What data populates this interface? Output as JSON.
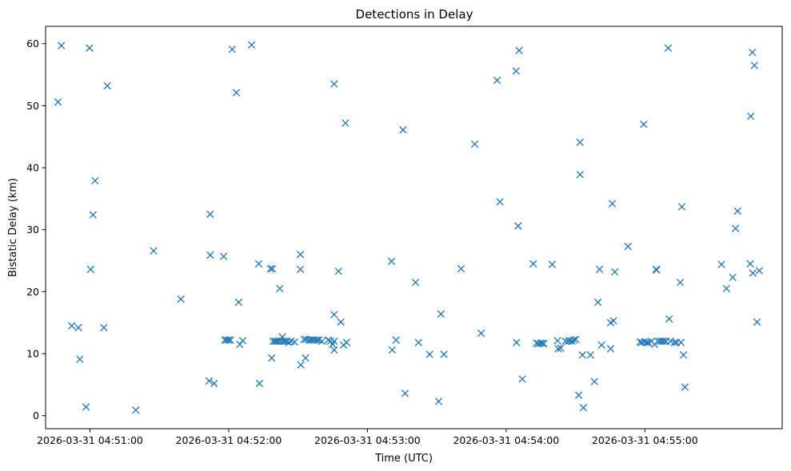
{
  "chart_data": {
    "type": "scatter",
    "title": "Detections in Delay",
    "xlabel": "Time (UTC)",
    "ylabel": "Bistatic Delay (km)",
    "x_ticks": [
      {
        "value": 60,
        "label": "2026-03-31 04:51:00"
      },
      {
        "value": 120,
        "label": "2026-03-31 04:52:00"
      },
      {
        "value": 180,
        "label": "2026-03-31 04:53:00"
      },
      {
        "value": 240,
        "label": "2026-03-31 04:54:00"
      },
      {
        "value": 300,
        "label": "2026-03-31 04:55:00"
      }
    ],
    "y_ticks": [
      0,
      10,
      20,
      30,
      40,
      50,
      60
    ],
    "xlim": [
      40.8,
      359.4
    ],
    "ylim": [
      -2.1,
      62.8
    ],
    "grid": false,
    "marker": "x",
    "color": "#1f77b4",
    "points": [
      [
        46.2,
        50.6
      ],
      [
        47.6,
        59.7
      ],
      [
        52.1,
        14.5
      ],
      [
        55.0,
        14.2
      ],
      [
        55.6,
        9.1
      ],
      [
        58.3,
        1.4
      ],
      [
        59.8,
        59.3
      ],
      [
        60.3,
        23.6
      ],
      [
        61.3,
        32.4
      ],
      [
        62.2,
        37.9
      ],
      [
        66.0,
        14.2
      ],
      [
        67.5,
        53.2
      ],
      [
        79.8,
        0.9
      ],
      [
        87.5,
        26.6
      ],
      [
        99.3,
        18.8
      ],
      [
        111.5,
        5.6
      ],
      [
        112.0,
        25.9
      ],
      [
        112.0,
        32.5
      ],
      [
        113.7,
        5.2
      ],
      [
        117.8,
        25.7
      ],
      [
        118.3,
        12.2
      ],
      [
        119.1,
        12.2
      ],
      [
        120.0,
        12.2
      ],
      [
        120.7,
        12.2
      ],
      [
        121.5,
        59.1
      ],
      [
        123.3,
        52.1
      ],
      [
        124.3,
        18.3
      ],
      [
        124.8,
        11.5
      ],
      [
        126.1,
        12.1
      ],
      [
        129.9,
        59.8
      ],
      [
        133.0,
        24.5
      ],
      [
        133.3,
        5.2
      ],
      [
        138.1,
        23.7
      ],
      [
        138.6,
        9.3
      ],
      [
        138.9,
        23.7
      ],
      [
        139.2,
        12.0
      ],
      [
        140.0,
        12.0
      ],
      [
        140.7,
        12.0
      ],
      [
        141.6,
        12.0
      ],
      [
        142.1,
        20.5
      ],
      [
        142.5,
        12.0
      ],
      [
        143.2,
        12.7
      ],
      [
        143.6,
        12.0
      ],
      [
        144.4,
        12.0
      ],
      [
        145.2,
        12.0
      ],
      [
        146.0,
        11.8
      ],
      [
        147.0,
        12.0
      ],
      [
        148.5,
        11.9
      ],
      [
        151.0,
        26.0
      ],
      [
        151.0,
        23.6
      ],
      [
        151.2,
        8.2
      ],
      [
        152.6,
        12.3
      ],
      [
        153.5,
        12.3
      ],
      [
        153.2,
        9.3
      ],
      [
        154.7,
        12.2
      ],
      [
        155.6,
        12.2
      ],
      [
        156.4,
        12.2
      ],
      [
        157.3,
        12.2
      ],
      [
        158.2,
        12.2
      ],
      [
        159.0,
        12.2
      ],
      [
        160.3,
        12.0
      ],
      [
        163.1,
        12.2
      ],
      [
        164.0,
        12.0
      ],
      [
        164.9,
        11.5
      ],
      [
        165.6,
        12.0
      ],
      [
        165.6,
        10.6
      ],
      [
        165.6,
        16.3
      ],
      [
        165.6,
        53.5
      ],
      [
        167.5,
        23.3
      ],
      [
        168.5,
        15.1
      ],
      [
        169.7,
        11.4
      ],
      [
        170.5,
        47.2
      ],
      [
        171.0,
        11.8
      ],
      [
        190.4,
        24.9
      ],
      [
        190.7,
        10.6
      ],
      [
        192.4,
        12.2
      ],
      [
        195.4,
        46.1
      ],
      [
        196.3,
        3.6
      ],
      [
        200.8,
        21.5
      ],
      [
        202.1,
        11.8
      ],
      [
        206.9,
        9.9
      ],
      [
        210.8,
        2.3
      ],
      [
        211.8,
        16.4
      ],
      [
        213.1,
        9.9
      ],
      [
        220.5,
        23.7
      ],
      [
        226.4,
        43.8
      ],
      [
        229.2,
        13.3
      ],
      [
        236.1,
        54.1
      ],
      [
        237.3,
        34.5
      ],
      [
        244.3,
        55.6
      ],
      [
        244.5,
        11.8
      ],
      [
        245.2,
        30.6
      ],
      [
        245.6,
        58.9
      ],
      [
        247.0,
        5.9
      ],
      [
        251.7,
        24.5
      ],
      [
        253.2,
        11.7
      ],
      [
        253.9,
        11.6
      ],
      [
        254.9,
        11.7
      ],
      [
        255.7,
        11.7
      ],
      [
        256.3,
        11.6
      ],
      [
        259.9,
        24.4
      ],
      [
        262.2,
        12.1
      ],
      [
        262.5,
        10.8
      ],
      [
        263.6,
        10.9
      ],
      [
        265.6,
        12.0
      ],
      [
        266.8,
        12.0
      ],
      [
        267.5,
        12.1
      ],
      [
        268.4,
        12.0
      ],
      [
        269.2,
        12.2
      ],
      [
        270.1,
        12.3
      ],
      [
        271.4,
        3.3
      ],
      [
        271.9,
        44.1
      ],
      [
        272.0,
        38.9
      ],
      [
        273.0,
        9.8
      ],
      [
        273.4,
        1.3
      ],
      [
        276.5,
        9.8
      ],
      [
        278.2,
        5.5
      ],
      [
        279.7,
        18.3
      ],
      [
        280.4,
        23.6
      ],
      [
        281.3,
        11.4
      ],
      [
        285.2,
        15.0
      ],
      [
        285.2,
        10.8
      ],
      [
        285.9,
        34.2
      ],
      [
        286.4,
        15.3
      ],
      [
        287.0,
        23.2
      ],
      [
        292.7,
        27.3
      ],
      [
        297.9,
        11.9
      ],
      [
        298.6,
        11.8
      ],
      [
        299.5,
        47.0
      ],
      [
        299.8,
        11.9
      ],
      [
        300.7,
        11.8
      ],
      [
        301.5,
        11.8
      ],
      [
        302.9,
        12.0
      ],
      [
        304.2,
        11.5
      ],
      [
        304.9,
        23.6
      ],
      [
        305.0,
        23.5
      ],
      [
        305.7,
        12.0
      ],
      [
        306.6,
        12.0
      ],
      [
        307.5,
        12.0
      ],
      [
        308.3,
        12.0
      ],
      [
        309.2,
        12.0
      ],
      [
        310.1,
        59.3
      ],
      [
        310.5,
        15.6
      ],
      [
        311.1,
        12.0
      ],
      [
        312.8,
        11.8
      ],
      [
        313.7,
        11.8
      ],
      [
        315.3,
        21.5
      ],
      [
        315.6,
        11.8
      ],
      [
        316.0,
        33.7
      ],
      [
        316.7,
        9.8
      ],
      [
        317.3,
        4.6
      ],
      [
        333.1,
        24.4
      ],
      [
        335.3,
        20.5
      ],
      [
        338.0,
        22.3
      ],
      [
        339.2,
        30.2
      ],
      [
        340.1,
        33.0
      ],
      [
        345.6,
        24.5
      ],
      [
        345.8,
        48.3
      ],
      [
        346.5,
        58.6
      ],
      [
        346.7,
        23.0
      ],
      [
        347.4,
        56.5
      ],
      [
        348.5,
        15.1
      ],
      [
        349.5,
        23.4
      ]
    ]
  }
}
